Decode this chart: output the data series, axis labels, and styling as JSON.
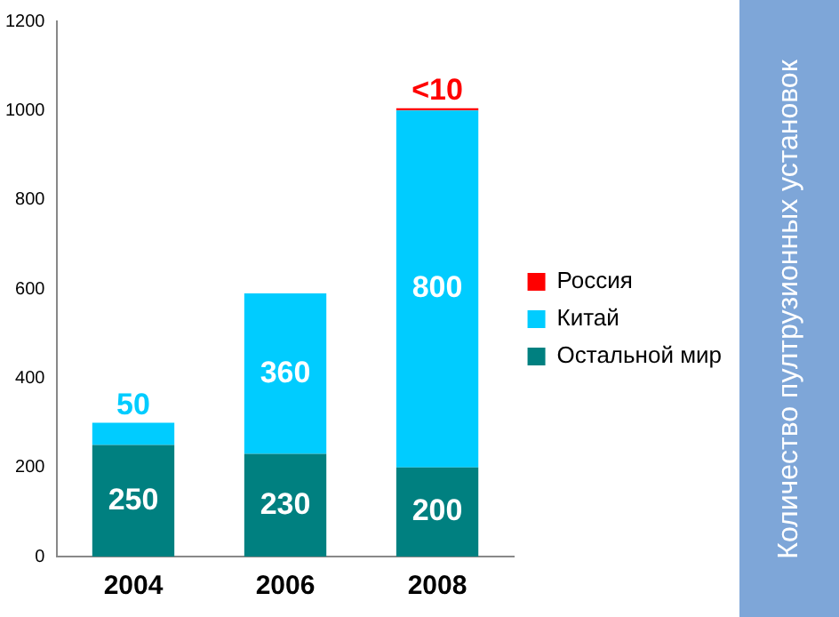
{
  "chart_data": {
    "type": "bar",
    "stacked": true,
    "annotations": [
      "Количество пултрузионных установок"
    ],
    "categories": [
      "2004",
      "2006",
      "2008"
    ],
    "series": [
      {
        "name": "Остальной мир",
        "color": "#008080",
        "values": [
          250,
          230,
          200
        ],
        "value_labels": [
          "250",
          "230",
          "200"
        ]
      },
      {
        "name": "Китай",
        "color": "#00ccff",
        "values": [
          50,
          360,
          800
        ],
        "value_labels": [
          "50",
          "360",
          "800"
        ]
      },
      {
        "name": "Россия",
        "color": "#ff0000",
        "values": [
          null,
          null,
          5
        ],
        "value_labels": [
          null,
          null,
          "<10"
        ]
      }
    ],
    "ylim": [
      0,
      1200
    ],
    "yticks": [
      0,
      200,
      400,
      600,
      800,
      1000,
      1200
    ],
    "grid": false,
    "legend": "right"
  }
}
